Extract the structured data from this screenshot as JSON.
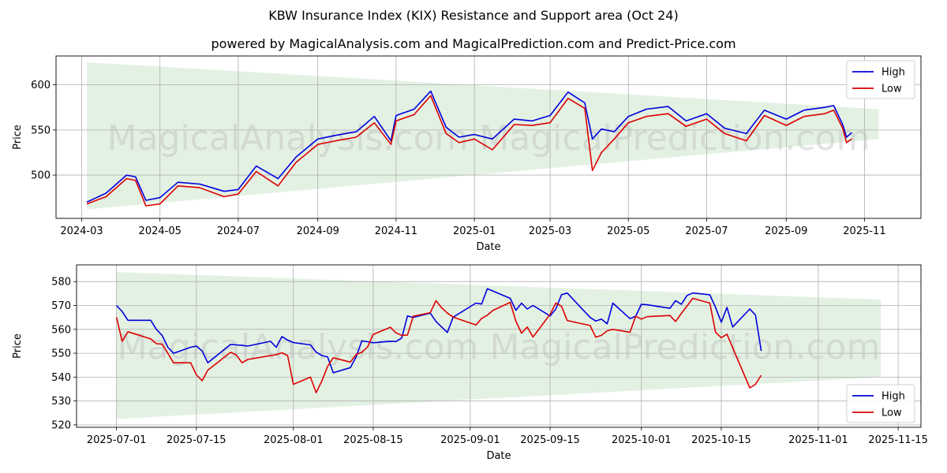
{
  "title": "KBW Insurance Index (KIX) Resistance and Support area (Oct 24)",
  "subtitle": "powered by MagicalAnalysis.com and MagicalPrediction.com and Predict-Price.com",
  "watermark": "MagicalAnalysis.com   MagicalPrediction.com",
  "colors": {
    "high": "#0000dd",
    "low": "#dd0000",
    "band": "#e3f1e3",
    "grid": "#b0b0b0"
  },
  "chart_data": [
    {
      "type": "line",
      "xlabel": "Date",
      "ylabel": "Price",
      "x_range": [
        "2024-02-10",
        "2025-12-15"
      ],
      "ylim": [
        452,
        632
      ],
      "grid": true,
      "legend_position": "top-right",
      "x_ticks": [
        "2024-03",
        "2024-05",
        "2024-07",
        "2024-09",
        "2024-11",
        "2025-01",
        "2025-03",
        "2025-05",
        "2025-07",
        "2025-09",
        "2025-11"
      ],
      "y_ticks": [
        500,
        550,
        600
      ],
      "band": {
        "start": "2024-03-05",
        "end": "2025-11-12",
        "upper": [
          625,
          573
        ],
        "lower": [
          462,
          540
        ]
      },
      "series": [
        {
          "name": "High",
          "x": [
            "2024-03-05",
            "2024-03-20",
            "2024-04-05",
            "2024-04-12",
            "2024-04-20",
            "2024-05-01",
            "2024-05-15",
            "2024-06-01",
            "2024-06-20",
            "2024-07-01",
            "2024-07-15",
            "2024-08-01",
            "2024-08-15",
            "2024-09-01",
            "2024-09-15",
            "2024-10-01",
            "2024-10-15",
            "2024-10-28",
            "2024-11-01",
            "2024-11-15",
            "2024-11-28",
            "2024-12-10",
            "2024-12-20",
            "2025-01-01",
            "2025-01-15",
            "2025-02-01",
            "2025-02-15",
            "2025-03-01",
            "2025-03-15",
            "2025-03-28",
            "2025-04-03",
            "2025-04-10",
            "2025-04-20",
            "2025-05-01",
            "2025-05-15",
            "2025-06-01",
            "2025-06-15",
            "2025-07-01",
            "2025-07-15",
            "2025-08-01",
            "2025-08-15",
            "2025-09-01",
            "2025-09-15",
            "2025-10-01",
            "2025-10-08",
            "2025-10-15",
            "2025-10-18",
            "2025-10-22"
          ],
          "values": [
            470,
            480,
            500,
            498,
            472,
            475,
            492,
            490,
            482,
            484,
            510,
            496,
            520,
            540,
            544,
            548,
            565,
            538,
            566,
            573,
            593,
            553,
            542,
            545,
            540,
            562,
            560,
            566,
            592,
            580,
            540,
            551,
            548,
            565,
            573,
            576,
            560,
            568,
            552,
            546,
            572,
            562,
            572,
            575,
            577,
            556,
            542,
            547
          ]
        },
        {
          "name": "Low",
          "x": [
            "2024-03-05",
            "2024-03-20",
            "2024-04-05",
            "2024-04-12",
            "2024-04-20",
            "2024-05-01",
            "2024-05-15",
            "2024-06-01",
            "2024-06-20",
            "2024-07-01",
            "2024-07-15",
            "2024-08-01",
            "2024-08-15",
            "2024-09-01",
            "2024-09-15",
            "2024-10-01",
            "2024-10-15",
            "2024-10-28",
            "2024-11-01",
            "2024-11-15",
            "2024-11-28",
            "2024-12-10",
            "2024-12-20",
            "2025-01-01",
            "2025-01-15",
            "2025-02-01",
            "2025-02-15",
            "2025-03-01",
            "2025-03-15",
            "2025-03-28",
            "2025-04-03",
            "2025-04-10",
            "2025-04-20",
            "2025-05-01",
            "2025-05-15",
            "2025-06-01",
            "2025-06-15",
            "2025-07-01",
            "2025-07-15",
            "2025-08-01",
            "2025-08-15",
            "2025-09-01",
            "2025-09-15",
            "2025-10-01",
            "2025-10-08",
            "2025-10-15",
            "2025-10-18",
            "2025-10-22"
          ],
          "values": [
            468,
            476,
            496,
            494,
            466,
            468,
            488,
            486,
            476,
            479,
            504,
            488,
            514,
            534,
            538,
            542,
            558,
            534,
            560,
            567,
            588,
            546,
            536,
            540,
            528,
            556,
            555,
            558,
            585,
            574,
            505,
            525,
            540,
            558,
            565,
            568,
            554,
            562,
            546,
            538,
            566,
            555,
            565,
            568,
            572,
            552,
            536,
            540
          ]
        }
      ]
    },
    {
      "type": "line",
      "xlabel": "Date",
      "ylabel": "Price",
      "x_range": [
        "2025-06-24",
        "2025-11-19"
      ],
      "ylim": [
        519,
        587
      ],
      "grid": true,
      "legend_position": "bottom-right",
      "x_ticks": [
        "2025-07-01",
        "2025-07-15",
        "2025-08-01",
        "2025-08-15",
        "2025-09-01",
        "2025-09-15",
        "2025-10-01",
        "2025-10-15",
        "2025-11-01",
        "2025-11-15"
      ],
      "y_ticks": [
        520,
        530,
        540,
        550,
        560,
        570,
        580
      ],
      "band": {
        "start": "2025-07-01",
        "end": "2025-11-12",
        "upper": [
          584,
          572.5
        ],
        "lower": [
          522.5,
          540
        ]
      },
      "series": [
        {
          "name": "High",
          "x": [
            "2025-07-01",
            "2025-07-02",
            "2025-07-03",
            "2025-07-07",
            "2025-07-08",
            "2025-07-09",
            "2025-07-10",
            "2025-07-11",
            "2025-07-14",
            "2025-07-15",
            "2025-07-16",
            "2025-07-17",
            "2025-07-21",
            "2025-07-22",
            "2025-07-23",
            "2025-07-24",
            "2025-07-28",
            "2025-07-29",
            "2025-07-30",
            "2025-07-31",
            "2025-08-01",
            "2025-08-04",
            "2025-08-05",
            "2025-08-06",
            "2025-08-07",
            "2025-08-08",
            "2025-08-11",
            "2025-08-12",
            "2025-08-13",
            "2025-08-14",
            "2025-08-15",
            "2025-08-18",
            "2025-08-19",
            "2025-08-20",
            "2025-08-21",
            "2025-08-22",
            "2025-08-25",
            "2025-08-26",
            "2025-08-27",
            "2025-08-28",
            "2025-08-29",
            "2025-09-02",
            "2025-09-03",
            "2025-09-04",
            "2025-09-05",
            "2025-09-08",
            "2025-09-09",
            "2025-09-10",
            "2025-09-11",
            "2025-09-12",
            "2025-09-15",
            "2025-09-16",
            "2025-09-17",
            "2025-09-18",
            "2025-09-22",
            "2025-09-23",
            "2025-09-24",
            "2025-09-25",
            "2025-09-26",
            "2025-09-29",
            "2025-09-30",
            "2025-10-01",
            "2025-10-02",
            "2025-10-06",
            "2025-10-07",
            "2025-10-08",
            "2025-10-09",
            "2025-10-10",
            "2025-10-13",
            "2025-10-14",
            "2025-10-15",
            "2025-10-16",
            "2025-10-17",
            "2025-10-20",
            "2025-10-21",
            "2025-10-22"
          ],
          "values": [
            570,
            567.5,
            563.8,
            563.8,
            560,
            557.5,
            552.5,
            550,
            552.5,
            553,
            551,
            546,
            553.7,
            553.5,
            553.3,
            553,
            555,
            552.5,
            557,
            555.5,
            554.5,
            553.5,
            550.5,
            549,
            548.5,
            541.8,
            544,
            548.5,
            555.2,
            554.8,
            554.4,
            555,
            554.9,
            556.4,
            565.6,
            565,
            566.8,
            563.3,
            561,
            558.7,
            565.1,
            571,
            570.6,
            577,
            576,
            573,
            568,
            571,
            568.5,
            570,
            565.6,
            568.5,
            574.5,
            575.2,
            565,
            563.5,
            564.3,
            562.3,
            571,
            564.5,
            565.5,
            570.5,
            570.3,
            568.8,
            572,
            570.5,
            574.2,
            575.2,
            574.5,
            569.2,
            563,
            569.2,
            561,
            568.5,
            566,
            551
          ]
        },
        {
          "name": "Low",
          "x": [
            "2025-07-01",
            "2025-07-02",
            "2025-07-03",
            "2025-07-07",
            "2025-07-08",
            "2025-07-09",
            "2025-07-10",
            "2025-07-11",
            "2025-07-14",
            "2025-07-15",
            "2025-07-16",
            "2025-07-17",
            "2025-07-21",
            "2025-07-22",
            "2025-07-23",
            "2025-07-24",
            "2025-07-28",
            "2025-07-29",
            "2025-07-30",
            "2025-07-31",
            "2025-08-01",
            "2025-08-04",
            "2025-08-05",
            "2025-08-06",
            "2025-08-07",
            "2025-08-08",
            "2025-08-11",
            "2025-08-12",
            "2025-08-13",
            "2025-08-14",
            "2025-08-15",
            "2025-08-18",
            "2025-08-19",
            "2025-08-20",
            "2025-08-21",
            "2025-08-22",
            "2025-08-25",
            "2025-08-26",
            "2025-08-27",
            "2025-08-28",
            "2025-08-29",
            "2025-09-02",
            "2025-09-03",
            "2025-09-04",
            "2025-09-05",
            "2025-09-08",
            "2025-09-09",
            "2025-09-10",
            "2025-09-11",
            "2025-09-12",
            "2025-09-15",
            "2025-09-16",
            "2025-09-17",
            "2025-09-18",
            "2025-09-22",
            "2025-09-23",
            "2025-09-24",
            "2025-09-25",
            "2025-09-26",
            "2025-09-29",
            "2025-09-30",
            "2025-10-01",
            "2025-10-02",
            "2025-10-06",
            "2025-10-07",
            "2025-10-08",
            "2025-10-09",
            "2025-10-10",
            "2025-10-13",
            "2025-10-14",
            "2025-10-15",
            "2025-10-16",
            "2025-10-17",
            "2025-10-20",
            "2025-10-21",
            "2025-10-22"
          ],
          "values": [
            565,
            555,
            559,
            556,
            554,
            553.8,
            550,
            546,
            546,
            541,
            538.5,
            542.9,
            550.4,
            549.3,
            546,
            547.4,
            549,
            549.4,
            550.2,
            549,
            537,
            540,
            533.5,
            538.4,
            544.5,
            548.1,
            546.3,
            549.5,
            550.4,
            552.6,
            557.9,
            560.9,
            558.5,
            557.5,
            557.6,
            565.5,
            567,
            572,
            569,
            566.8,
            565.1,
            561.8,
            564.6,
            565.9,
            568,
            571.3,
            563.4,
            558.4,
            561,
            556.8,
            566.3,
            571,
            569.7,
            563.7,
            561.6,
            556.7,
            557.5,
            559.4,
            560,
            558.8,
            565.5,
            564.3,
            565.3,
            565.8,
            563.3,
            566.7,
            569.8,
            573,
            571,
            558.8,
            556.5,
            558,
            552.3,
            535.5,
            537,
            540.8
          ]
        }
      ]
    }
  ],
  "legend": [
    {
      "label": "High"
    },
    {
      "label": "Low"
    }
  ]
}
